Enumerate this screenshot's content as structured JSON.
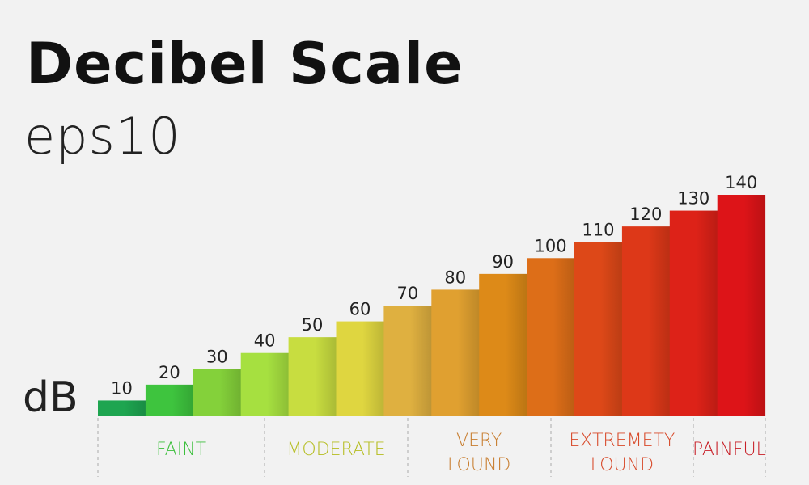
{
  "header": {
    "title": "Decibel Scale",
    "subtitle": "eps10"
  },
  "chart_data": {
    "type": "bar",
    "title": "Decibel Scale",
    "ylabel": "dB",
    "categories": [
      "10",
      "20",
      "30",
      "40",
      "50",
      "60",
      "70",
      "80",
      "90",
      "100",
      "110",
      "120",
      "130",
      "140"
    ],
    "values": [
      10,
      20,
      30,
      40,
      50,
      60,
      70,
      80,
      90,
      100,
      110,
      120,
      130,
      140
    ],
    "colors": [
      "#1ea550",
      "#3ec43e",
      "#84d13a",
      "#a6e040",
      "#c8dd40",
      "#dfd640",
      "#dfb040",
      "#e0a030",
      "#dd8a18",
      "#dd6e18",
      "#dd4818",
      "#dd3818",
      "#dd2218",
      "#dd1418"
    ],
    "ylim": [
      0,
      140
    ],
    "grid": false,
    "groups": [
      {
        "lines": [
          "FAINT"
        ],
        "from": 10,
        "to": 40,
        "color": "#3cbf3c"
      },
      {
        "lines": [
          "MODERATE"
        ],
        "from": 40,
        "to": 70,
        "color": "#b5bd20"
      },
      {
        "lines": [
          "VERY",
          "LOUND"
        ],
        "from": 70,
        "to": 100,
        "color": "#c87e30"
      },
      {
        "lines": [
          "EXTREMETY",
          "LOUND"
        ],
        "from": 100,
        "to": 130,
        "color": "#d84a2a"
      },
      {
        "lines": [
          "PAINFUL"
        ],
        "from": 130,
        "to": 140,
        "color": "#c82028"
      }
    ]
  }
}
